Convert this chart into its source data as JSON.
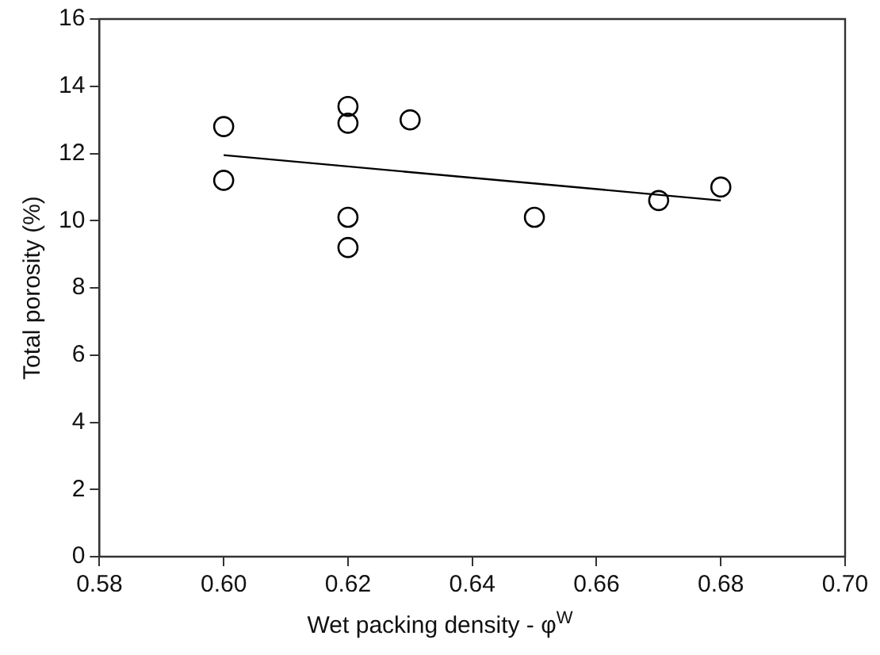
{
  "chart_data": {
    "type": "scatter",
    "xlabel": "Wet packing density - φ$^{W}$",
    "ylabel": "Total porosity (%)",
    "xlim": [
      0.58,
      0.7
    ],
    "xticks": [
      {
        "value": 0.58,
        "label": "0.58"
      },
      {
        "value": 0.6,
        "label": "0.60"
      },
      {
        "value": 0.62,
        "label": "0.62"
      },
      {
        "value": 0.64,
        "label": "0.64"
      },
      {
        "value": 0.66,
        "label": "0.66"
      },
      {
        "value": 0.68,
        "label": "0.68"
      },
      {
        "value": 0.7,
        "label": "0.70"
      }
    ],
    "ylim": [
      0,
      16
    ],
    "yticks": [
      0,
      2,
      4,
      6,
      8,
      10,
      12,
      14,
      16
    ],
    "grid": false,
    "legend": false,
    "series": [
      {
        "type": "scatter",
        "marker": "circle",
        "color": "#000000",
        "x": [
          0.6,
          0.6,
          0.62,
          0.62,
          0.62,
          0.62,
          0.63,
          0.65,
          0.67,
          0.68
        ],
        "values": [
          12.8,
          11.2,
          13.4,
          12.9,
          10.1,
          9.2,
          13.0,
          10.1,
          10.6,
          11.0
        ]
      },
      {
        "type": "line",
        "marker": "none",
        "color": "#000000",
        "x": [
          0.6,
          0.68
        ],
        "values": [
          11.95,
          10.6
        ]
      }
    ]
  }
}
